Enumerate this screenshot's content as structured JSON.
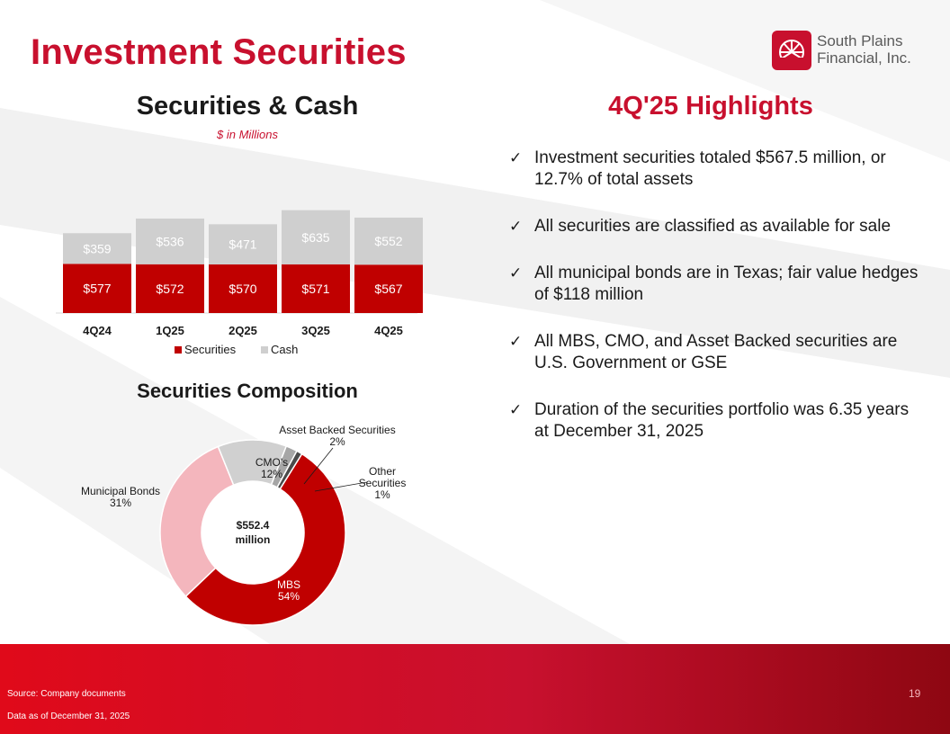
{
  "title": "Investment Securities",
  "logo": {
    "line1": "South Plains",
    "line2": "Financial, Inc."
  },
  "colors": {
    "brand_red": "#c8102e",
    "securities": "#c00000",
    "cash": "#cfcfcf",
    "muni": "#f4b6bd",
    "cmo": "#d0d0d0",
    "abs": "#a6a6a6",
    "other": "#4a4a4a"
  },
  "icons": {
    "bullet": "check-icon",
    "logo": "sunburst-logo-icon"
  },
  "bar_section": {
    "title": "Securities & Cash",
    "subtitle": "$ in Millions"
  },
  "pie_section": {
    "title": "Securities Composition",
    "center_line1": "$552.4",
    "center_line2": "million"
  },
  "highlights": {
    "title": "4Q'25 Highlights",
    "items": [
      "Investment securities totaled $567.5 million, or 12.7% of total assets",
      "All securities are classified as available for sale",
      "All municipal bonds are in Texas; fair value hedges of $118 million",
      "All MBS, CMO, and Asset Backed securities are U.S. Government or GSE",
      "Duration of the securities portfolio was 6.35 years at December 31, 2025"
    ]
  },
  "chart_data": [
    {
      "type": "bar",
      "stacked": true,
      "categories": [
        "4Q24",
        "1Q25",
        "2Q25",
        "3Q25",
        "4Q25"
      ],
      "series": [
        {
          "name": "Securities",
          "values": [
            577,
            572,
            570,
            571,
            567
          ],
          "labels": [
            "$577",
            "$572",
            "$570",
            "$571",
            "$567"
          ]
        },
        {
          "name": "Cash",
          "values": [
            359,
            536,
            471,
            635,
            552
          ],
          "labels": [
            "$359",
            "$536",
            "$471",
            "$635",
            "$552"
          ]
        }
      ],
      "legend": "bottom"
    },
    {
      "type": "pie",
      "donut": true,
      "slices": [
        {
          "name": "MBS",
          "value": 54,
          "label": "54%"
        },
        {
          "name": "Municipal Bonds",
          "value": 31,
          "label": "31%"
        },
        {
          "name": "CMO's",
          "value": 12,
          "label": "12%"
        },
        {
          "name": "Asset Backed Securities",
          "value": 2,
          "label": "2%"
        },
        {
          "name": "Other Securities",
          "value": 1,
          "label": "1%"
        }
      ]
    }
  ],
  "footer": {
    "source": "Source: Company documents",
    "as_of": "Data as of December 31, 2025",
    "page": "19"
  }
}
